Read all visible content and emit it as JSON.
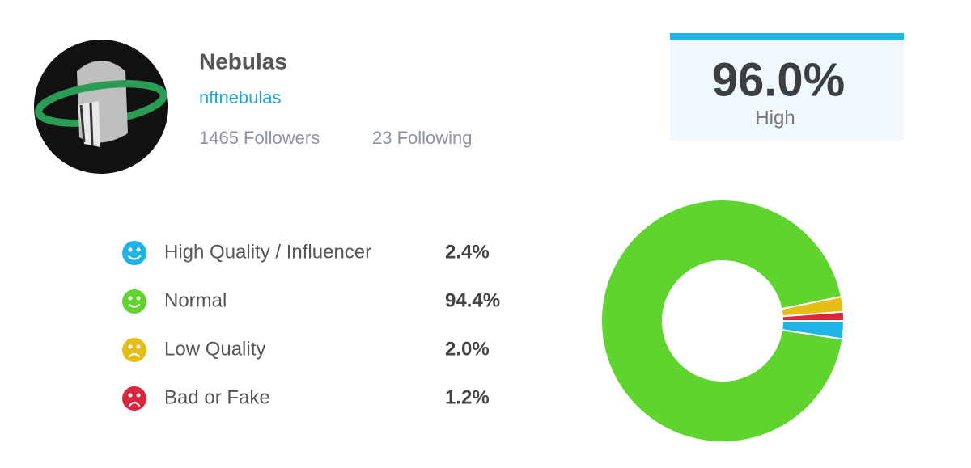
{
  "profile": {
    "name": "Nebulas",
    "handle": "nftnebulas",
    "followers": "1465 Followers",
    "following": "23 Following"
  },
  "score": {
    "value": "96.0%",
    "label": "High"
  },
  "chart_data": {
    "type": "pie",
    "donut": true,
    "categories": [
      "High Quality / Influencer",
      "Normal",
      "Low Quality",
      "Bad or Fake"
    ],
    "values": [
      2.4,
      94.4,
      2.0,
      1.2
    ],
    "value_labels": [
      "2.4%",
      "94.4%",
      "2.0%",
      "1.2%"
    ],
    "colors": [
      "#1eb4e8",
      "#5fd32e",
      "#e6bd14",
      "#d9263d"
    ]
  }
}
